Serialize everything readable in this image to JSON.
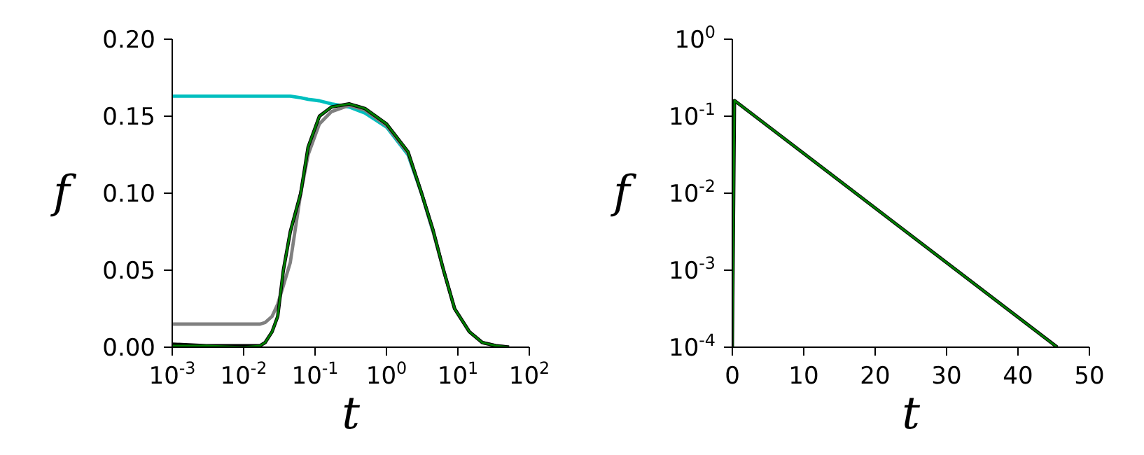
{
  "chart_data": [
    {
      "type": "line",
      "xlabel": "t",
      "ylabel": "f",
      "log": "x",
      "x": [
        0.001,
        0.003,
        0.01,
        0.017,
        0.02,
        0.025,
        0.03,
        0.036,
        0.045,
        0.063,
        0.08,
        0.115,
        0.17,
        0.3,
        0.5,
        1,
        2,
        3.1,
        4.5,
        6.3,
        9,
        14.5,
        22,
        34,
        52
      ],
      "series": [
        {
          "color": "#00bfbf",
          "values": [
            0.163,
            0.163,
            0.163,
            0.163,
            0.163,
            0.163,
            0.163,
            0.163,
            0.163,
            0.162,
            0.161,
            0.16,
            0.158,
            0.156,
            0.152,
            0.143,
            0.125,
            0.1,
            0.075,
            null,
            null,
            null,
            null,
            null,
            null
          ]
        },
        {
          "color": "#808080",
          "values": [
            0.015,
            0.015,
            0.015,
            0.015,
            0.016,
            0.02,
            0.028,
            0.04,
            0.055,
            0.1,
            0.125,
            0.145,
            0.153,
            0.157,
            0.154,
            0.144,
            0.126,
            0.1,
            0.075,
            0.05,
            0.025,
            0.01,
            0.003,
            0.001,
            0
          ]
        },
        {
          "color": "#000000",
          "values": [
            0.002,
            0.001,
            0.001,
            0.001,
            0.003,
            0.01,
            0.02,
            0.05,
            0.075,
            0.1,
            0.13,
            0.15,
            0.156,
            0.158,
            0.155,
            0.145,
            0.127,
            0.1,
            0.076,
            0.05,
            0.025,
            0.01,
            0.003,
            0.001,
            0
          ]
        },
        {
          "color": "#008000",
          "values": [
            0.001,
            0.001,
            0,
            0.001,
            0.003,
            0.01,
            0.02,
            0.05,
            0.075,
            0.1,
            0.13,
            0.15,
            0.156,
            0.158,
            0.155,
            0.145,
            0.127,
            0.1,
            0.076,
            0.05,
            0.025,
            0.01,
            0.003,
            0.001,
            0
          ]
        }
      ],
      "xlim": [
        0.001,
        100
      ],
      "xticks": [
        {
          "value": 0.001,
          "label": "10$^{-3}$"
        },
        {
          "value": 0.01,
          "label": "10$^{-2}$"
        },
        {
          "value": 0.1,
          "label": "10$^{-1}$"
        },
        {
          "value": 1,
          "label": "10$^{0}$"
        },
        {
          "value": 10,
          "label": "10$^{1}$"
        },
        {
          "value": 100,
          "label": "10$^{2}$"
        }
      ],
      "ylim": [
        0,
        0.2
      ],
      "yticks": [
        {
          "value": 0,
          "label": "0.00"
        },
        {
          "value": 0.05,
          "label": "0.05"
        },
        {
          "value": 0.1,
          "label": "0.10"
        },
        {
          "value": 0.15,
          "label": "0.15"
        },
        {
          "value": 0.2,
          "label": "0.20"
        }
      ]
    },
    {
      "type": "line",
      "xlabel": "t",
      "ylabel": "f",
      "log": "y",
      "x": [
        0,
        0.3,
        45.5
      ],
      "series": [
        {
          "color": "#000000",
          "values": [
            0.0001,
            0.16,
            0.0001
          ]
        },
        {
          "color": "#008000",
          "values": [
            0.0001,
            0.16,
            0.0001
          ]
        }
      ],
      "xlim": [
        0,
        50
      ],
      "xticks": [
        0,
        10,
        20,
        30,
        40,
        50
      ],
      "ylim": [
        0.0001,
        1
      ],
      "yticks": [
        {
          "value": 0.0001,
          "label": "10$^{-4}$"
        },
        {
          "value": 0.001,
          "label": "10$^{-3}$"
        },
        {
          "value": 0.01,
          "label": "10$^{-2}$"
        },
        {
          "value": 0.1,
          "label": "10$^{-1}$"
        },
        {
          "value": 1,
          "label": "10$^{0}$"
        }
      ]
    }
  ]
}
